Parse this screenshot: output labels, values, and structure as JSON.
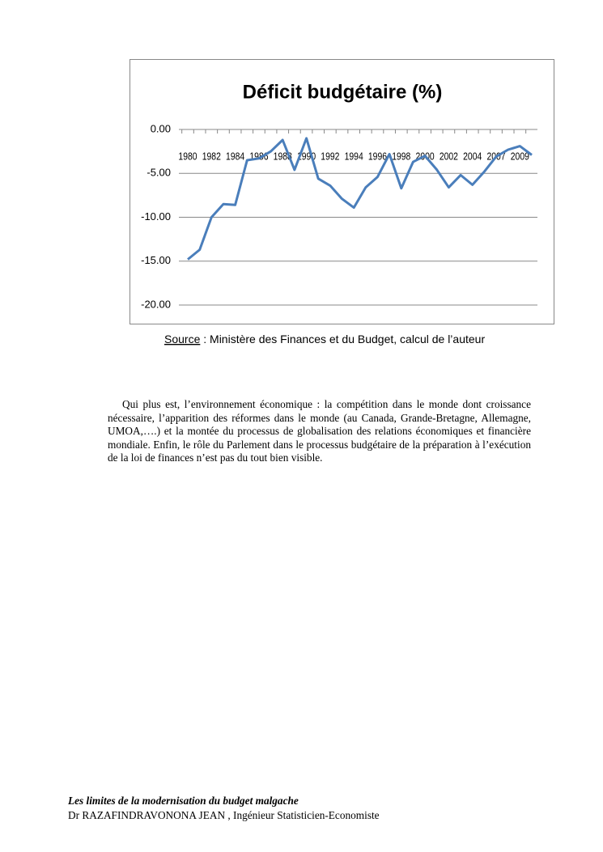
{
  "chart_data": {
    "type": "line",
    "title": "Déficit budgétaire (%)",
    "categories": [
      "1980",
      null,
      "1982",
      null,
      "1984",
      null,
      "1986",
      null,
      "1988",
      null,
      "1990",
      null,
      "1992",
      null,
      "1994",
      null,
      "1996",
      null,
      "1998",
      null,
      "2000",
      null,
      "2002",
      null,
      "2004",
      null,
      "2007",
      null,
      "2009",
      null
    ],
    "series": [
      {
        "name": "Déficit budgétaire",
        "color": "#4a7ebb",
        "values": [
          -14.8,
          -13.7,
          -10.0,
          -8.5,
          -8.6,
          -3.5,
          -3.3,
          -2.5,
          -1.2,
          -4.6,
          -1.0,
          -5.6,
          -6.4,
          -7.9,
          -8.9,
          -6.6,
          -5.4,
          -2.8,
          -6.7,
          -3.7,
          -3.0,
          -4.6,
          -6.6,
          -5.2,
          -6.3,
          -4.8,
          -3.1,
          -2.3,
          -1.9,
          -2.9
        ]
      }
    ],
    "ylim": [
      -20,
      0
    ],
    "yticks": [
      {
        "value": 0,
        "label": "0.00"
      },
      {
        "value": -5,
        "label": "-5.00"
      },
      {
        "value": -10,
        "label": "-10.00"
      },
      {
        "value": -15,
        "label": "-15.00"
      },
      {
        "value": -20,
        "label": "-20.00"
      }
    ],
    "grid": true,
    "source_label": "Source",
    "source_text": " : Ministère des Finances et du Budget, calcul de l’auteur"
  },
  "body": {
    "paragraph": "Qui plus est, l’environnement économique : la compétition dans le monde dont croissance nécessaire, l’apparition des réformes dans le monde (au Canada, Grande-Bretagne, Allemagne, UMOA,….) et la montée du processus de globalisation des relations économiques et financière mondiale. Enfin, le rôle du Parlement dans le processus budgétaire de la préparation à l’exécution de la loi de finances n’est pas du tout bien visible."
  },
  "footer": {
    "title": "Les limites de la modernisation du budget malgache",
    "author": "Dr RAZAFINDRAVONONA JEAN , Ingénieur Statisticien-Economiste"
  }
}
